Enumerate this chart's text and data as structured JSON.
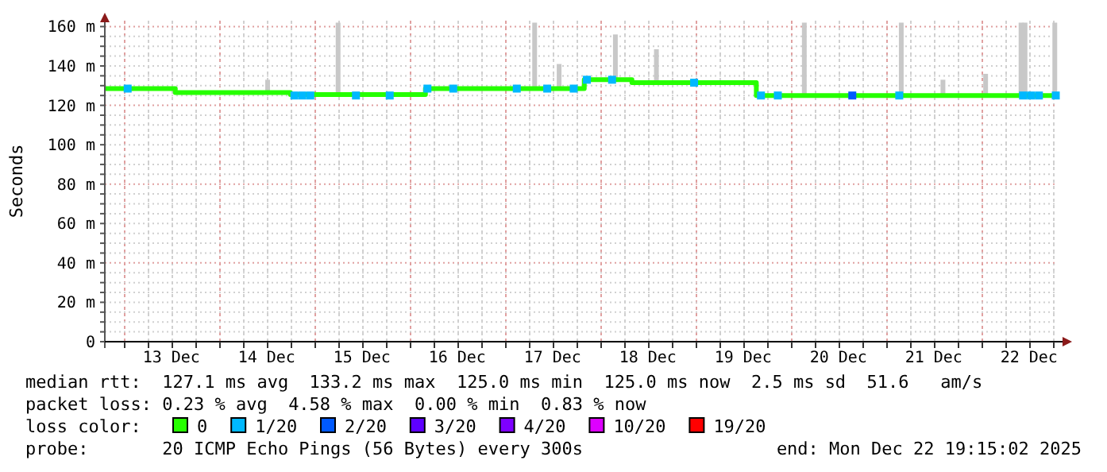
{
  "chart_data": {
    "type": "step",
    "ylabel": "Seconds",
    "legend_title": "loss color:",
    "legend": "bottom",
    "grid": true,
    "xlim": [
      "2025-12-12T19:15",
      "2025-12-22T19:15"
    ],
    "xticks": [
      {
        "value": "2025-12-13T00:00",
        "label": null
      },
      {
        "value": "2025-12-13T06:00",
        "label": null
      },
      {
        "value": "2025-12-13T12:00",
        "label": "13 Dec"
      },
      {
        "value": "2025-12-13T18:00",
        "label": null
      },
      {
        "value": "2025-12-14T00:00",
        "label": null
      },
      {
        "value": "2025-12-14T06:00",
        "label": null
      },
      {
        "value": "2025-12-14T12:00",
        "label": "14 Dec"
      },
      {
        "value": "2025-12-14T18:00",
        "label": null
      },
      {
        "value": "2025-12-15T00:00",
        "label": null
      },
      {
        "value": "2025-12-15T06:00",
        "label": null
      },
      {
        "value": "2025-12-15T12:00",
        "label": "15 Dec"
      },
      {
        "value": "2025-12-15T18:00",
        "label": null
      },
      {
        "value": "2025-12-16T00:00",
        "label": null
      },
      {
        "value": "2025-12-16T06:00",
        "label": null
      },
      {
        "value": "2025-12-16T12:00",
        "label": "16 Dec"
      },
      {
        "value": "2025-12-16T18:00",
        "label": null
      },
      {
        "value": "2025-12-17T00:00",
        "label": null
      },
      {
        "value": "2025-12-17T06:00",
        "label": null
      },
      {
        "value": "2025-12-17T12:00",
        "label": "17 Dec"
      },
      {
        "value": "2025-12-17T18:00",
        "label": null
      },
      {
        "value": "2025-12-18T00:00",
        "label": null
      },
      {
        "value": "2025-12-18T06:00",
        "label": null
      },
      {
        "value": "2025-12-18T12:00",
        "label": "18 Dec"
      },
      {
        "value": "2025-12-18T18:00",
        "label": null
      },
      {
        "value": "2025-12-19T00:00",
        "label": null
      },
      {
        "value": "2025-12-19T06:00",
        "label": null
      },
      {
        "value": "2025-12-19T12:00",
        "label": "19 Dec"
      },
      {
        "value": "2025-12-19T18:00",
        "label": null
      },
      {
        "value": "2025-12-20T00:00",
        "label": null
      },
      {
        "value": "2025-12-20T06:00",
        "label": null
      },
      {
        "value": "2025-12-20T12:00",
        "label": "20 Dec"
      },
      {
        "value": "2025-12-20T18:00",
        "label": null
      },
      {
        "value": "2025-12-21T00:00",
        "label": null
      },
      {
        "value": "2025-12-21T06:00",
        "label": null
      },
      {
        "value": "2025-12-21T12:00",
        "label": "21 Dec"
      },
      {
        "value": "2025-12-21T18:00",
        "label": null
      },
      {
        "value": "2025-12-22T00:00",
        "label": null
      },
      {
        "value": "2025-12-22T06:00",
        "label": null
      },
      {
        "value": "2025-12-22T12:00",
        "label": "22 Dec"
      },
      {
        "value": "2025-12-22T18:00",
        "label": null
      }
    ],
    "ylim": [
      0,
      163
    ],
    "yticks": [
      {
        "value": 0,
        "label": "0"
      },
      {
        "value": 5,
        "label": null
      },
      {
        "value": 10,
        "label": null
      },
      {
        "value": 15,
        "label": null
      },
      {
        "value": 20,
        "label": "20 m"
      },
      {
        "value": 25,
        "label": null
      },
      {
        "value": 30,
        "label": null
      },
      {
        "value": 35,
        "label": null
      },
      {
        "value": 40,
        "label": "40 m"
      },
      {
        "value": 45,
        "label": null
      },
      {
        "value": 50,
        "label": null
      },
      {
        "value": 55,
        "label": null
      },
      {
        "value": 60,
        "label": "60 m"
      },
      {
        "value": 65,
        "label": null
      },
      {
        "value": 70,
        "label": null
      },
      {
        "value": 75,
        "label": null
      },
      {
        "value": 80,
        "label": "80 m"
      },
      {
        "value": 85,
        "label": null
      },
      {
        "value": 90,
        "label": null
      },
      {
        "value": 95,
        "label": null
      },
      {
        "value": 100,
        "label": "100 m"
      },
      {
        "value": 105,
        "label": null
      },
      {
        "value": 110,
        "label": null
      },
      {
        "value": 115,
        "label": null
      },
      {
        "value": 120,
        "label": "120 m"
      },
      {
        "value": 125,
        "label": null
      },
      {
        "value": 130,
        "label": null
      },
      {
        "value": 135,
        "label": null
      },
      {
        "value": 140,
        "label": "140 m"
      },
      {
        "value": 145,
        "label": null
      },
      {
        "value": 150,
        "label": null
      },
      {
        "value": 155,
        "label": null
      },
      {
        "value": 160,
        "label": "160 m"
      }
    ],
    "series": [
      {
        "type": "bar",
        "color": "#c8c8c8",
        "x": [
          "2025-12-14T12:15",
          "2025-12-15T06:00",
          "2025-12-17T07:30",
          "2025-12-17T13:40",
          "2025-12-18T03:50",
          "2025-12-18T14:10",
          "2025-12-20T03:25",
          "2025-12-21T03:50",
          "2025-12-21T14:20",
          "2025-12-22T01:05",
          "2025-12-22T10:00",
          "2025-12-22T11:00",
          "2025-12-22T18:30"
        ],
        "base": [
          126.5,
          125,
          128.5,
          128.5,
          133,
          131.5,
          125,
          125,
          125,
          125,
          125,
          125,
          125
        ],
        "values": [
          6.5,
          37,
          33.5,
          12.5,
          23,
          17,
          37,
          37,
          8,
          11,
          37,
          37,
          37
        ]
      },
      {
        "name": "0",
        "color": "#26ff00",
        "x": [
          "2025-12-12T19:15",
          "2025-12-13T13:00",
          "2025-12-14T18:00",
          "2025-12-16T04:00",
          "2025-12-17T20:00",
          "2025-12-18T08:00",
          "2025-12-19T15:20",
          "2025-12-22T19:15"
        ],
        "values": [
          128.5,
          126.5,
          125.5,
          128.5,
          133,
          131.5,
          125,
          125
        ]
      },
      {
        "name": "1/20",
        "type": "scatter",
        "marker": "square",
        "color": "#00b8ff",
        "x": [
          "2025-12-13T01:00",
          "2025-12-14T19:00",
          "2025-12-14T21:00",
          "2025-12-14T23:00",
          "2025-12-15T10:30",
          "2025-12-15T19:00",
          "2025-12-16T04:30",
          "2025-12-16T11:00",
          "2025-12-17T03:00",
          "2025-12-17T10:40",
          "2025-12-17T17:20",
          "2025-12-17T20:40",
          "2025-12-18T03:00",
          "2025-12-18T23:40",
          "2025-12-19T16:30",
          "2025-12-19T20:45",
          "2025-12-21T03:20",
          "2025-12-22T10:30",
          "2025-12-22T12:30",
          "2025-12-22T14:30",
          "2025-12-22T18:45"
        ],
        "values": [
          128.5,
          125,
          125,
          125,
          125,
          125,
          128.5,
          128.5,
          128.5,
          128.5,
          128.5,
          133,
          133,
          131.5,
          125,
          125,
          125,
          125,
          125,
          125,
          125
        ]
      },
      {
        "name": "2/20",
        "type": "scatter",
        "marker": "square",
        "color": "#0059ff",
        "x": [
          "2025-12-20T15:30"
        ],
        "values": [
          125
        ]
      },
      {
        "name": "3/20",
        "color": "#5e00ff"
      },
      {
        "name": "4/20",
        "color": "#7e00ff"
      },
      {
        "name": "10/20",
        "color": "#dd00ff"
      },
      {
        "name": "19/20",
        "color": "#ff0000"
      }
    ],
    "annotations": [
      "median rtt:  127.1 ms avg  133.2 ms max  125.0 ms min  125.0 ms now  2.5 ms sd  51.6   am/s",
      "packet loss: 0.23 % avg  4.58 % max  0.00 % min  0.83 % now",
      "probe:       20 ICMP Echo Pings (56 Bytes) every 300s",
      "end: Mon Dec 22 19:15:02 2025"
    ]
  }
}
